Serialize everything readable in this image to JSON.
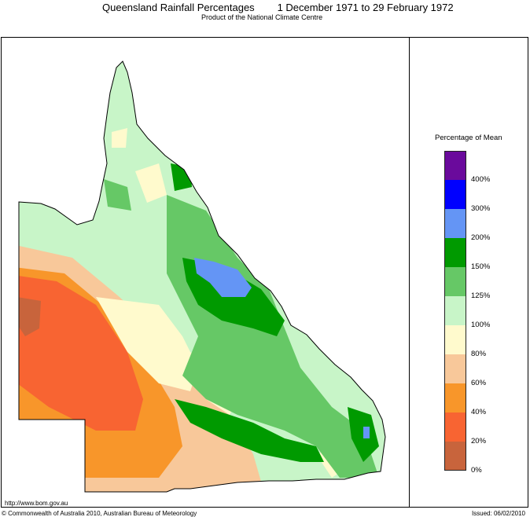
{
  "header": {
    "title": "Queensland Rainfall Percentages        1 December 1971 to 29 February 1972",
    "subtitle": "Product of the National Climate Centre"
  },
  "legend": {
    "title": "Percentage of Mean",
    "classes": [
      {
        "label": "400%",
        "color": "#6a0a9c"
      },
      {
        "label": "300%",
        "color": "#0000ff"
      },
      {
        "label": "200%",
        "color": "#6495f5"
      },
      {
        "label": "150%",
        "color": "#009a00"
      },
      {
        "label": "125%",
        "color": "#66c866"
      },
      {
        "label": "100%",
        "color": "#c8f5c8"
      },
      {
        "label": "80%",
        "color": "#fffacd"
      },
      {
        "label": "60%",
        "color": "#f8c89a"
      },
      {
        "label": "40%",
        "color": "#f8962a"
      },
      {
        "label": "20%",
        "color": "#f86432"
      },
      {
        "label": "0%",
        "color": "#c8643c"
      }
    ]
  },
  "footer": {
    "url": "http://www.bom.gov.au",
    "copyright": "© Commonwealth of Australia 2010, Australian Bureau of Meteorology",
    "issued": "Issued: 06/02/2010"
  }
}
